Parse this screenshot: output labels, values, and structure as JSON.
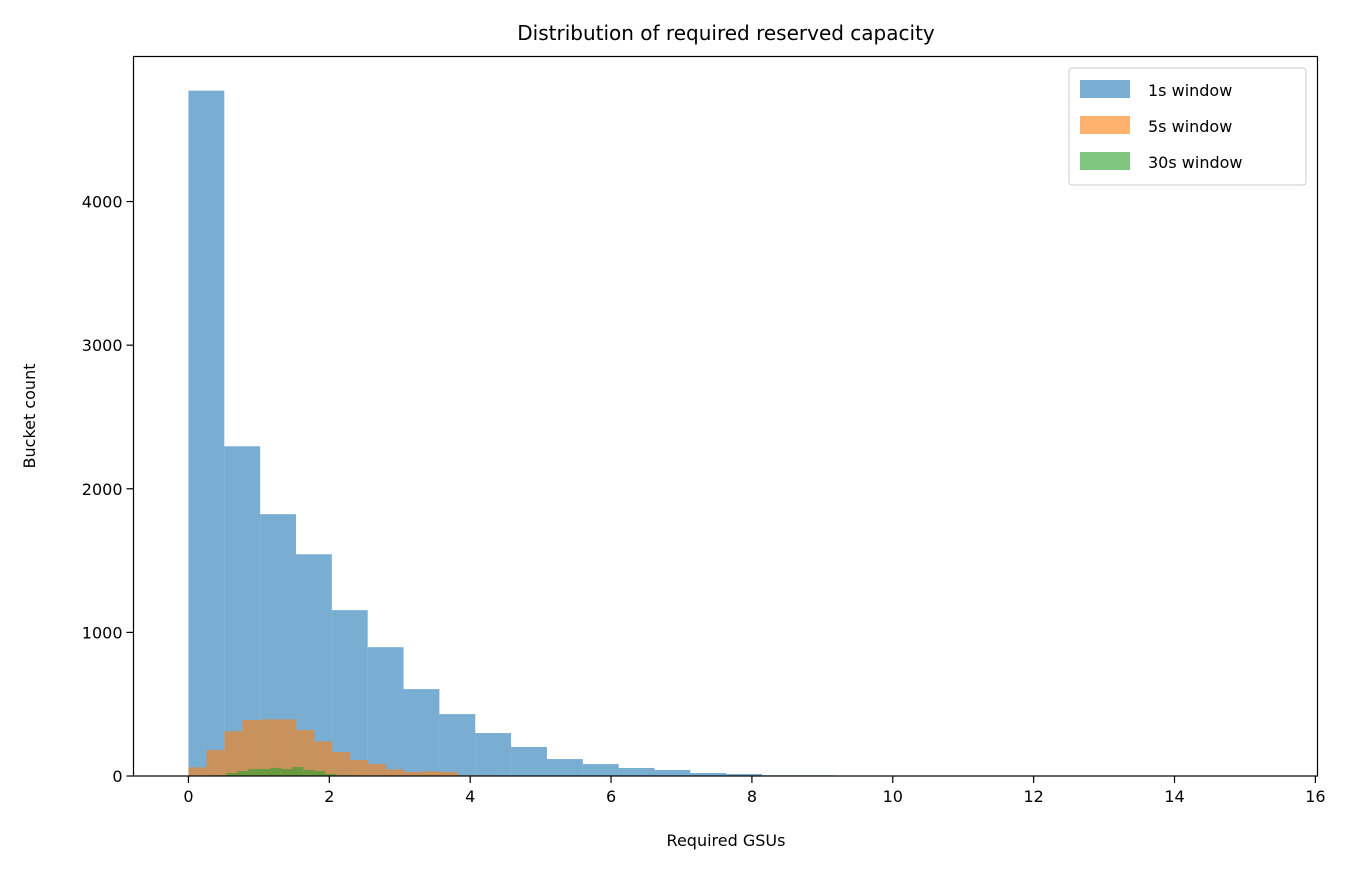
{
  "chart_data": {
    "type": "histogram",
    "title": "Distribution of required reserved capacity",
    "xlabel": "Required GSUs",
    "ylabel": "Bucket count",
    "xlim": [
      -0.78,
      16.03
    ],
    "ylim": [
      0,
      5010
    ],
    "xticks": [
      0,
      2,
      4,
      6,
      8,
      10,
      12,
      14,
      16
    ],
    "yticks": [
      0,
      1000,
      2000,
      3000,
      4000
    ],
    "grid": false,
    "legend_placement": "top-right",
    "series": [
      {
        "name": "1s window",
        "color": "#1f77b4",
        "alpha": 0.6,
        "bin_start": 0,
        "bin_width": 0.509,
        "counts": [
          4772,
          2296,
          1823,
          1544,
          1155,
          897,
          605,
          431,
          299,
          202,
          118,
          83,
          56,
          42,
          21,
          14,
          5,
          5,
          3,
          2,
          1,
          1,
          1,
          0,
          0,
          0,
          0,
          0,
          1,
          1
        ]
      },
      {
        "name": "5s window",
        "color": "#ff7f0e",
        "alpha": 0.6,
        "bin_start": 0,
        "bin_width": 0.255,
        "counts": [
          60,
          181,
          311,
          390,
          394,
          394,
          320,
          241,
          167,
          111,
          83,
          46,
          28,
          32,
          28,
          5,
          5,
          3
        ]
      },
      {
        "name": "30s window",
        "color": "#2ca02c",
        "alpha": 0.6,
        "bin_start": 0.07,
        "bin_width": 0.156,
        "counts": [
          2,
          3,
          5,
          21,
          35,
          49,
          49,
          56,
          49,
          63,
          42,
          35,
          14,
          5,
          5
        ]
      }
    ]
  }
}
